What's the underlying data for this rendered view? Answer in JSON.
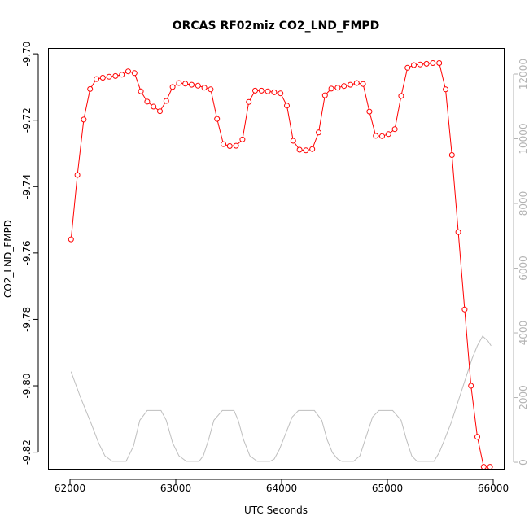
{
  "chart_data": {
    "type": "line",
    "title": "ORCAS RF02miz CO2_LND_FMPD",
    "xlabel": "UTC Seconds",
    "ylabel": "CO2_LND_FMPD",
    "xlim": [
      61800,
      66100
    ],
    "ylim": [
      -9.825,
      -9.6985
    ],
    "y2lim": [
      -200,
      12780
    ],
    "x_ticks": [
      62000,
      63000,
      64000,
      65000,
      66000
    ],
    "y_ticks": [
      -9.7,
      -9.72,
      -9.74,
      -9.76,
      -9.78,
      -9.8,
      -9.82
    ],
    "y_tick_labels": [
      "-9.70",
      "-9.72",
      "-9.74",
      "-9.76",
      "-9.78",
      "-9.80",
      "-9.82"
    ],
    "y2_ticks": [
      0,
      2000,
      4000,
      6000,
      8000,
      10000,
      12000
    ],
    "y2_tick_labels": [
      "0",
      "2000",
      "4000",
      "6000",
      "8000",
      "10000",
      "12000"
    ],
    "grid": false,
    "colors": {
      "co2": "#ff0000",
      "altitude": "#bebebe",
      "right_axis": "#b3b3b3",
      "frame": "#000000"
    },
    "series": [
      {
        "axis": "left",
        "style": "line+points",
        "x": [
          62010,
          62070,
          62130,
          62190,
          62250,
          62310,
          62370,
          62430,
          62490,
          62550,
          62610,
          62670,
          62730,
          62790,
          62850,
          62910,
          62970,
          63030,
          63090,
          63150,
          63210,
          63270,
          63330,
          63390,
          63450,
          63510,
          63570,
          63630,
          63690,
          63750,
          63810,
          63870,
          63930,
          63990,
          64050,
          64110,
          64170,
          64230,
          64290,
          64350,
          64410,
          64470,
          64530,
          64590,
          64650,
          64710,
          64770,
          64830,
          64890,
          64950,
          65010,
          65070,
          65130,
          65190,
          65250,
          65310,
          65370,
          65430,
          65490,
          65550,
          65610,
          65670,
          65730,
          65790,
          65850,
          65910,
          65970
        ],
        "y": [
          -9.7559,
          -9.7365,
          -9.7198,
          -9.7106,
          -9.7076,
          -9.7072,
          -9.7069,
          -9.7067,
          -9.7063,
          -9.7053,
          -9.7058,
          -9.7113,
          -9.7144,
          -9.7159,
          -9.7173,
          -9.7142,
          -9.71,
          -9.7088,
          -9.709,
          -9.7093,
          -9.7096,
          -9.7102,
          -9.7107,
          -9.7196,
          -9.7272,
          -9.7278,
          -9.7277,
          -9.7258,
          -9.7145,
          -9.7111,
          -9.7111,
          -9.7113,
          -9.7116,
          -9.7119,
          -9.7156,
          -9.7262,
          -9.7289,
          -9.7291,
          -9.7287,
          -9.7237,
          -9.7125,
          -9.7105,
          -9.7102,
          -9.7097,
          -9.7093,
          -9.7088,
          -9.7091,
          -9.7174,
          -9.7247,
          -9.7248,
          -9.7242,
          -9.7227,
          -9.7127,
          -9.7042,
          -9.7034,
          -9.7032,
          -9.703,
          -9.7028,
          -9.7028,
          -9.7107,
          -9.7305,
          -9.7537,
          -9.777,
          -9.8,
          -9.8154,
          -9.8244,
          -9.8244
        ]
      },
      {
        "axis": "right",
        "style": "line",
        "x": [
          62010,
          62100,
          62200,
          62270,
          62330,
          62400,
          62480,
          62530,
          62600,
          62660,
          62730,
          62800,
          62860,
          62910,
          62970,
          63030,
          63100,
          63170,
          63220,
          63260,
          63310,
          63360,
          63440,
          63500,
          63550,
          63590,
          63640,
          63700,
          63770,
          63830,
          63890,
          63930,
          63980,
          64040,
          64100,
          64160,
          64210,
          64250,
          64310,
          64380,
          64430,
          64480,
          64530,
          64570,
          64620,
          64680,
          64740,
          64800,
          64860,
          64920,
          64980,
          65050,
          65130,
          65180,
          65230,
          65280,
          65330,
          65380,
          65440,
          65490,
          65540,
          65600,
          65650,
          65700,
          65750,
          65800,
          65850,
          65900,
          65950,
          65980
        ],
        "y": [
          2800,
          2000,
          1200,
          600,
          200,
          30,
          30,
          30,
          500,
          1300,
          1600,
          1600,
          1600,
          1300,
          600,
          200,
          30,
          30,
          30,
          200,
          700,
          1300,
          1600,
          1600,
          1600,
          1300,
          700,
          200,
          30,
          30,
          30,
          100,
          400,
          900,
          1400,
          1600,
          1600,
          1600,
          1600,
          1300,
          700,
          300,
          100,
          30,
          30,
          30,
          200,
          800,
          1400,
          1600,
          1600,
          1600,
          1300,
          700,
          200,
          30,
          30,
          30,
          30,
          300,
          700,
          1200,
          1700,
          2200,
          2700,
          3200,
          3600,
          3900,
          3750,
          3600
        ]
      }
    ]
  }
}
